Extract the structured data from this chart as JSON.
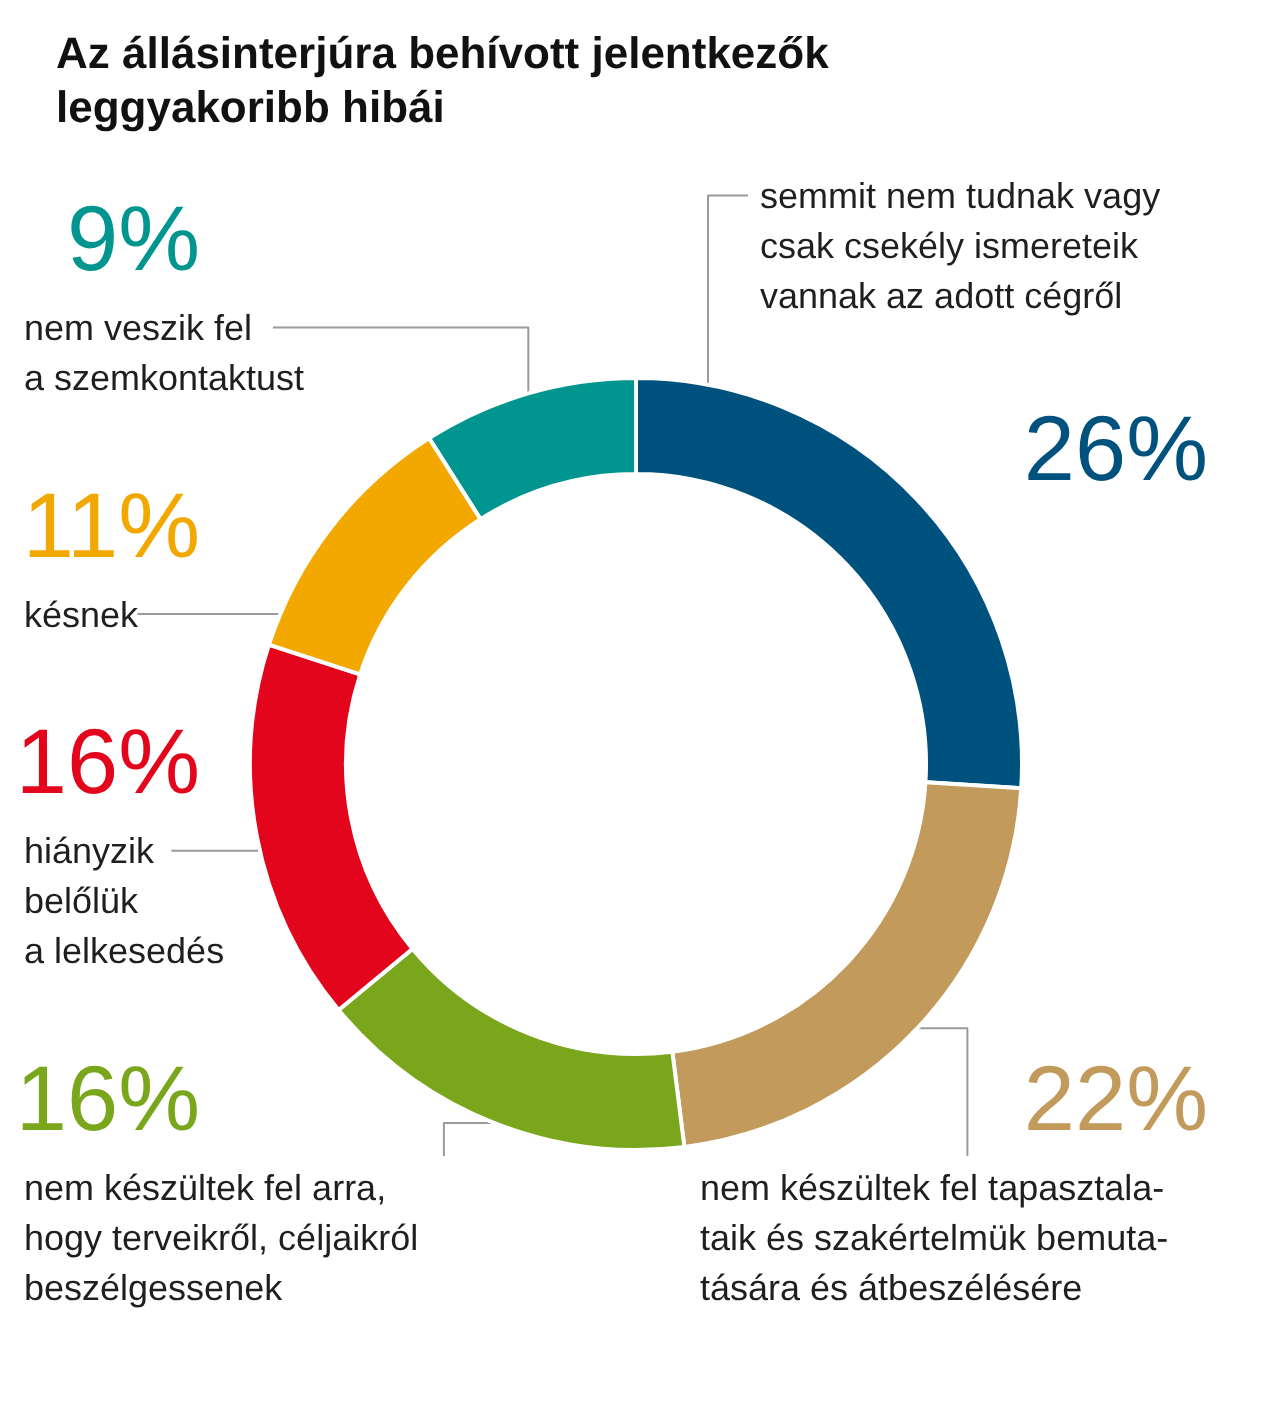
{
  "chart_data": {
    "type": "donut",
    "title": "Az állásinterjúra behívott jelentkezők\nleggyakoribb hibái",
    "categories": [
      "semmit nem tudnak vagy\ncsak csekély ismereteik\nvannak az adott cégről",
      "nem készültek fel tapasztala-\ntaik és szakértelmük bemuta-\ntására és átbeszélésére",
      "nem készültek fel arra,\nhogy terveikről, céljaikról\nbeszélgessenek",
      "hiányzik\nbelőlük\na lelkesedés",
      "késnek",
      "nem veszik fel\na szemkontaktust"
    ],
    "values": [
      26,
      22,
      16,
      16,
      11,
      9
    ],
    "colors": [
      "#00527e",
      "#c19a5c",
      "#7aa61c",
      "#e2051b",
      "#f3a800",
      "#00968f"
    ],
    "value_labels": [
      "26%",
      "22%",
      "16%",
      "16%",
      "11%",
      "9%"
    ]
  }
}
